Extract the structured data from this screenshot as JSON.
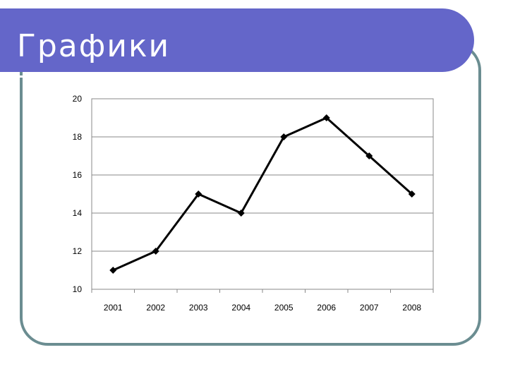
{
  "slide": {
    "title": "Графики"
  },
  "colors": {
    "title_bar": "#6466c9",
    "frame": "#6b8d91",
    "line": "#000000",
    "grid": "#888888"
  },
  "chart_data": {
    "type": "line",
    "title": "",
    "xlabel": "",
    "ylabel": "",
    "categories": [
      "2001",
      "2002",
      "2003",
      "2004",
      "2005",
      "2006",
      "2007",
      "2008"
    ],
    "series": [
      {
        "values": [
          11,
          12,
          15,
          14,
          18,
          19,
          17,
          15
        ]
      }
    ],
    "ylim": [
      10,
      20
    ],
    "yticks": [
      10,
      12,
      14,
      16,
      18,
      20
    ],
    "marker": "diamond",
    "grid": true,
    "legend": "none"
  }
}
